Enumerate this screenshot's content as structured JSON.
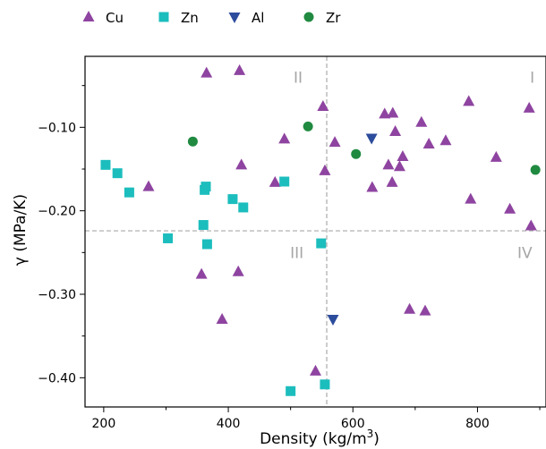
{
  "chart_data": {
    "type": "scatter",
    "xlabel": "Density (kg/m",
    "xlabel_sup": "3",
    "xlabel_close": ")",
    "ylabel": "γ (MPa/K)",
    "xlim": [
      170,
      910
    ],
    "ylim": [
      -0.435,
      -0.015
    ],
    "x_ticks": [
      200,
      400,
      600,
      800
    ],
    "x_tick_labels": [
      "200",
      "400",
      "600",
      "800"
    ],
    "x_minor_ticks": [
      300,
      500,
      700,
      900
    ],
    "y_ticks": [
      -0.1,
      -0.2,
      -0.3,
      -0.4
    ],
    "y_tick_labels": [
      "−0.10",
      "−0.20",
      "−0.30",
      "−0.40"
    ],
    "y_minor_ticks": [
      -0.05,
      -0.15,
      -0.25,
      -0.35
    ],
    "ref_lines": {
      "x": 558,
      "y": -0.224,
      "color": "#aaaaaa"
    },
    "quadrant_labels": [
      {
        "text": "I",
        "x": 888,
        "y": -0.04
      },
      {
        "text": "II",
        "x": 512,
        "y": -0.04
      },
      {
        "text": "III",
        "x": 510,
        "y": -0.25
      },
      {
        "text": "IV",
        "x": 876,
        "y": -0.25
      }
    ],
    "legend_position": "top",
    "series": [
      {
        "name": "Cu",
        "marker": "triangle-up",
        "color": "#8e44a0",
        "points": [
          [
            365,
            -0.035
          ],
          [
            418,
            -0.032
          ],
          [
            272,
            -0.171
          ],
          [
            421,
            -0.145
          ],
          [
            357,
            -0.276
          ],
          [
            416,
            -0.273
          ],
          [
            390,
            -0.33
          ],
          [
            475,
            -0.166
          ],
          [
            490,
            -0.114
          ],
          [
            552,
            -0.075
          ],
          [
            555,
            -0.152
          ],
          [
            571,
            -0.118
          ],
          [
            540,
            -0.392
          ],
          [
            631,
            -0.172
          ],
          [
            651,
            -0.084
          ],
          [
            664,
            -0.083
          ],
          [
            657,
            -0.145
          ],
          [
            668,
            -0.105
          ],
          [
            663,
            -0.166
          ],
          [
            675,
            -0.147
          ],
          [
            680,
            -0.135
          ],
          [
            691,
            -0.318
          ],
          [
            710,
            -0.094
          ],
          [
            716,
            -0.32
          ],
          [
            722,
            -0.12
          ],
          [
            749,
            -0.116
          ],
          [
            786,
            -0.069
          ],
          [
            789,
            -0.186
          ],
          [
            830,
            -0.136
          ],
          [
            852,
            -0.198
          ],
          [
            883,
            -0.077
          ],
          [
            886,
            -0.218
          ]
        ]
      },
      {
        "name": "Zn",
        "marker": "square",
        "color": "#1cbdbd",
        "points": [
          [
            203,
            -0.145
          ],
          [
            222,
            -0.155
          ],
          [
            241,
            -0.178
          ],
          [
            303,
            -0.233
          ],
          [
            360,
            -0.217
          ],
          [
            362,
            -0.175
          ],
          [
            364,
            -0.171
          ],
          [
            366,
            -0.24
          ],
          [
            407,
            -0.186
          ],
          [
            424,
            -0.196
          ],
          [
            490,
            -0.165
          ],
          [
            500,
            -0.416
          ],
          [
            549,
            -0.239
          ],
          [
            555,
            -0.408
          ]
        ]
      },
      {
        "name": "Al",
        "marker": "triangle-down",
        "color": "#2c4c9c",
        "points": [
          [
            630,
            -0.113
          ],
          [
            568,
            -0.33
          ]
        ]
      },
      {
        "name": "Zr",
        "marker": "circle",
        "color": "#208a40",
        "points": [
          [
            343,
            -0.117
          ],
          [
            528,
            -0.099
          ],
          [
            605,
            -0.132
          ],
          [
            893,
            -0.151
          ]
        ]
      }
    ]
  }
}
